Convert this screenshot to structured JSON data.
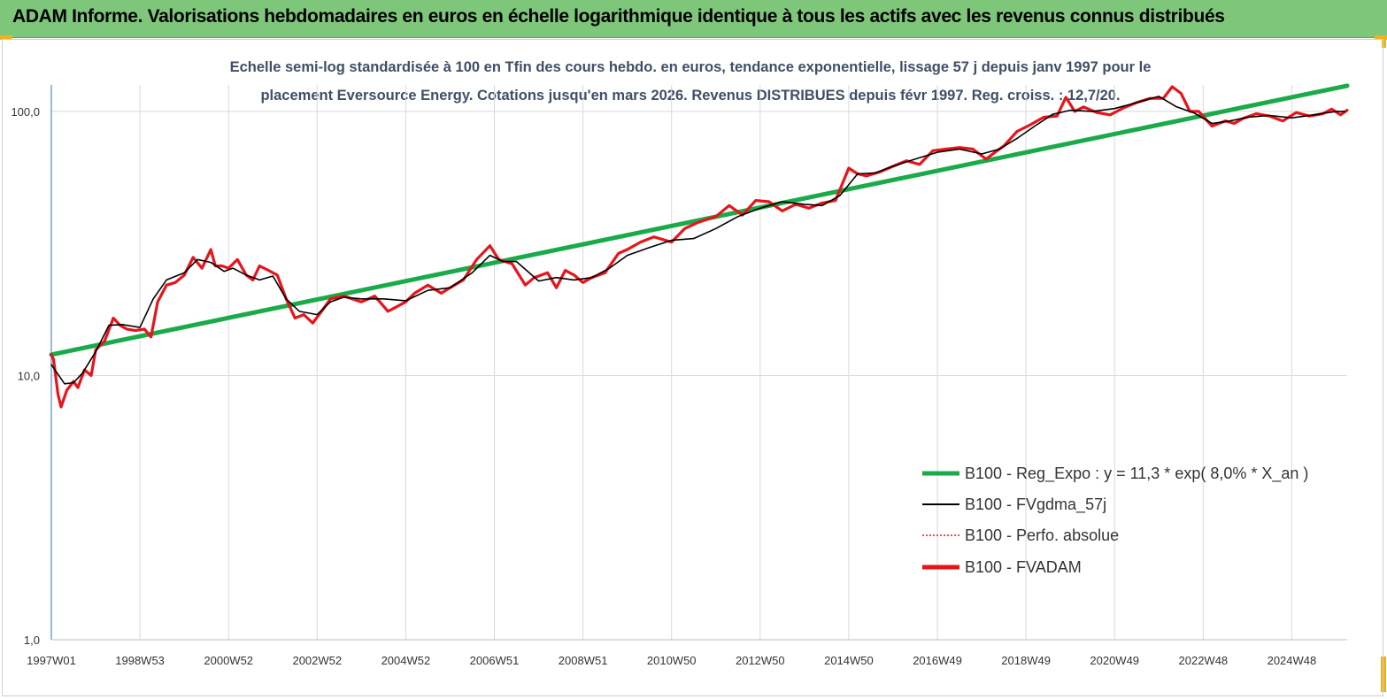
{
  "header": {
    "title": "ADAM Informe. Valorisations hebdomadaires en euros en échelle logarithmique identique à tous les actifs avec les revenus connus distribués"
  },
  "colors": {
    "header_bg": "#7dc67a",
    "regression": "#1aaa4a",
    "fvgdma": "#000000",
    "fvadam": "#e8141b",
    "perfo": "#e8141b",
    "title_text": "#3f4f66",
    "corner_marks": "#f2b21b"
  },
  "chart_data": {
    "type": "line",
    "title_line1": "Echelle semi-log standardisée à 100 en Tfin des cours hebdo. en euros, tendance exponentielle, lissage 57 j depuis janv 1997 pour le",
    "title_line2": "placement Eversource Energy. Cotations jusqu'en mars 2026.  Revenus DISTRIBUES depuis févr 1997. Reg. croiss. : 12,7/20.",
    "y_scale": "log",
    "ylim": [
      1,
      200
    ],
    "xlim": [
      1997.0,
      2026.25
    ],
    "y_ticks": [
      {
        "value": 1,
        "label": "1,0"
      },
      {
        "value": 10,
        "label": "10,0"
      },
      {
        "value": 100,
        "label": "100,0"
      }
    ],
    "x_ticks": [
      {
        "value": 1997.0,
        "label": "1997W01"
      },
      {
        "value": 1999.0,
        "label": "1998W53"
      },
      {
        "value": 2001.0,
        "label": "2000W52"
      },
      {
        "value": 2003.0,
        "label": "2002W52"
      },
      {
        "value": 2005.0,
        "label": "2004W52"
      },
      {
        "value": 2007.0,
        "label": "2006W51"
      },
      {
        "value": 2009.0,
        "label": "2008W51"
      },
      {
        "value": 2011.0,
        "label": "2010W50"
      },
      {
        "value": 2013.0,
        "label": "2012W50"
      },
      {
        "value": 2015.0,
        "label": "2014W50"
      },
      {
        "value": 2017.0,
        "label": "2016W49"
      },
      {
        "value": 2019.0,
        "label": "2018W49"
      },
      {
        "value": 2021.0,
        "label": "2020W49"
      },
      {
        "value": 2023.0,
        "label": "2022W48"
      },
      {
        "value": 2025.0,
        "label": "2024W48"
      }
    ],
    "grid": "vertical",
    "legend_position": "bottom-right",
    "series": [
      {
        "name": "B100 - Reg_Expo : y = 11,3 * exp( 8,0% *  X_an )",
        "style": "thick-solid",
        "x": [
          1997.0,
          2026.25
        ],
        "y": [
          12.0,
          125.0
        ]
      },
      {
        "name": "B100 - FVgdma_57j",
        "style": "thin-solid",
        "x": [
          1997.0,
          1997.1,
          1997.3,
          1997.5,
          1997.7,
          1998.0,
          1998.3,
          1998.6,
          1999.0,
          1999.3,
          1999.6,
          2000.0,
          2000.3,
          2000.6,
          2000.9,
          2001.1,
          2001.4,
          2001.7,
          2002.0,
          2002.3,
          2002.6,
          2003.0,
          2003.3,
          2003.6,
          2004.0,
          2004.5,
          2005.0,
          2005.5,
          2006.0,
          2006.5,
          2006.9,
          2007.2,
          2007.5,
          2008.0,
          2008.4,
          2008.8,
          2009.2,
          2009.6,
          2010.0,
          2010.5,
          2011.0,
          2011.5,
          2012.0,
          2012.5,
          2013.0,
          2013.5,
          2014.0,
          2014.4,
          2014.8,
          2015.2,
          2015.6,
          2016.0,
          2016.5,
          2017.0,
          2017.5,
          2018.0,
          2018.4,
          2018.8,
          2019.2,
          2019.6,
          2020.0,
          2020.5,
          2021.0,
          2021.5,
          2022.0,
          2022.4,
          2022.8,
          2023.2,
          2023.6,
          2024.0,
          2024.5,
          2025.0,
          2025.5,
          2026.0,
          2026.2
        ],
        "y": [
          11.0,
          10.4,
          9.3,
          9.4,
          10.2,
          12.3,
          15.5,
          15.6,
          15.2,
          19.5,
          23.0,
          24.5,
          27.5,
          26.8,
          24.8,
          25.5,
          24.0,
          23.0,
          23.8,
          19.5,
          17.5,
          17.0,
          19.0,
          19.8,
          19.5,
          19.5,
          19.2,
          21.0,
          21.5,
          24.5,
          28.5,
          27.0,
          27.0,
          22.8,
          23.5,
          23.0,
          23.5,
          25.5,
          28.5,
          30.5,
          32.5,
          33.0,
          36.0,
          40.0,
          43.0,
          45.5,
          44.5,
          44.0,
          48.0,
          58.0,
          58.5,
          62.0,
          66.0,
          70.0,
          72.0,
          69.0,
          72.0,
          79.0,
          88.0,
          97.5,
          101.0,
          100.0,
          102.5,
          108.0,
          114.0,
          104.0,
          98.5,
          90.0,
          92.0,
          95.0,
          96.5,
          94.5,
          97.0,
          100.0,
          100.0
        ]
      },
      {
        "name": "B100 - Perfo. absolue",
        "style": "dotted",
        "x": [],
        "y": []
      },
      {
        "name": "B100 - FVADAM",
        "style": "thick-solid",
        "x": [
          1997.0,
          1997.05,
          1997.15,
          1997.22,
          1997.35,
          1997.5,
          1997.6,
          1997.75,
          1997.9,
          1998.0,
          1998.2,
          1998.4,
          1998.55,
          1998.7,
          1998.9,
          1999.1,
          1999.25,
          1999.4,
          1999.6,
          1999.8,
          2000.0,
          2000.2,
          2000.4,
          2000.6,
          2000.7,
          2000.85,
          2001.0,
          2001.2,
          2001.4,
          2001.55,
          2001.7,
          2001.9,
          2002.1,
          2002.3,
          2002.5,
          2002.7,
          2002.9,
          2003.1,
          2003.3,
          2003.6,
          2004.0,
          2004.3,
          2004.6,
          2005.0,
          2005.2,
          2005.5,
          2005.8,
          2006.0,
          2006.3,
          2006.6,
          2006.9,
          2007.1,
          2007.4,
          2007.7,
          2007.9,
          2008.2,
          2008.4,
          2008.6,
          2008.8,
          2009.0,
          2009.2,
          2009.5,
          2009.8,
          2010.0,
          2010.3,
          2010.6,
          2011.0,
          2011.3,
          2011.6,
          2012.0,
          2012.3,
          2012.6,
          2012.9,
          2013.2,
          2013.5,
          2013.8,
          2014.1,
          2014.4,
          2014.7,
          2015.0,
          2015.2,
          2015.4,
          2015.7,
          2016.0,
          2016.3,
          2016.6,
          2016.9,
          2017.2,
          2017.5,
          2017.8,
          2018.1,
          2018.3,
          2018.5,
          2018.8,
          2019.1,
          2019.4,
          2019.7,
          2019.9,
          2020.1,
          2020.3,
          2020.6,
          2020.9,
          2021.2,
          2021.5,
          2021.8,
          2022.1,
          2022.3,
          2022.5,
          2022.7,
          2022.9,
          2023.2,
          2023.5,
          2023.7,
          2023.9,
          2024.2,
          2024.5,
          2024.8,
          2025.1,
          2025.4,
          2025.7,
          2025.9,
          2026.1,
          2026.25
        ],
        "y": [
          12.0,
          11.5,
          8.5,
          7.6,
          8.8,
          9.5,
          9.0,
          10.5,
          10.0,
          12.5,
          13.5,
          16.5,
          15.5,
          15.0,
          14.8,
          15.0,
          14.0,
          19.0,
          22.0,
          22.5,
          24.0,
          28.0,
          25.5,
          30.0,
          26.0,
          26.0,
          25.5,
          27.5,
          24.0,
          23.0,
          26.0,
          25.0,
          24.0,
          19.5,
          16.5,
          17.0,
          15.8,
          17.5,
          19.5,
          20.0,
          19.0,
          20.0,
          17.5,
          19.0,
          20.5,
          22.0,
          20.5,
          21.5,
          23.0,
          27.5,
          31.0,
          27.5,
          26.5,
          22.0,
          23.5,
          24.5,
          21.5,
          25.0,
          24.0,
          22.5,
          23.5,
          24.5,
          29.0,
          30.0,
          32.0,
          33.5,
          32.0,
          36.0,
          38.0,
          40.0,
          44.0,
          40.5,
          46.0,
          45.5,
          42.0,
          44.5,
          43.0,
          45.0,
          46.0,
          61.0,
          58.0,
          57.0,
          59.0,
          62.0,
          65.0,
          63.0,
          71.0,
          72.0,
          73.0,
          72.0,
          66.0,
          70.0,
          74.0,
          84.0,
          89.0,
          95.0,
          96.0,
          113.0,
          100.0,
          104.0,
          99.0,
          97.0,
          103.0,
          108.0,
          112.0,
          112.0,
          124.0,
          117.0,
          100.0,
          100.0,
          88.0,
          92.0,
          90.0,
          94.0,
          98.0,
          96.0,
          92.0,
          99.0,
          96.0,
          98.0,
          102.0,
          97.0,
          101.0
        ]
      }
    ]
  }
}
